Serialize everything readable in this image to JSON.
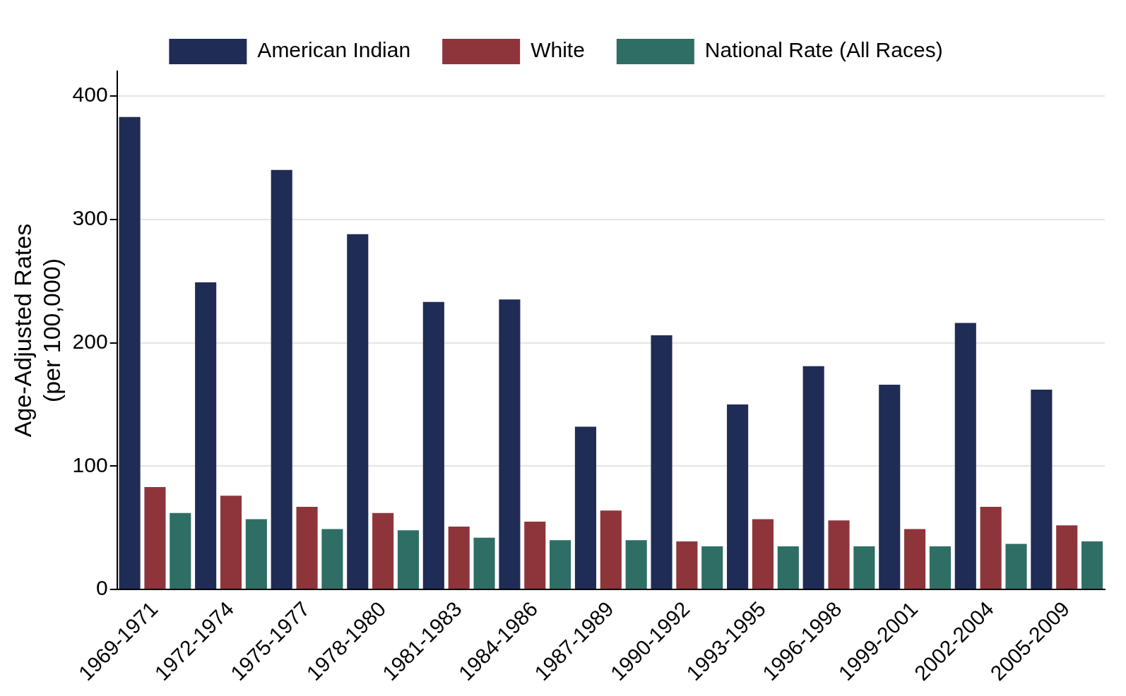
{
  "chart_data": {
    "type": "bar",
    "ylabel": "Age-Adjusted Rates\n(per 100,000)",
    "categories": [
      "1969-1971",
      "1972-1974",
      "1975-1977",
      "1978-1980",
      "1981-1983",
      "1984-1986",
      "1987-1989",
      "1990-1992",
      "1993-1995",
      "1996-1998",
      "1999-2001",
      "2002-2004",
      "2005-2009"
    ],
    "series": [
      {
        "name": "American Indian",
        "color": "#1f2c55",
        "values": [
          383,
          249,
          340,
          288,
          233,
          235,
          132,
          206,
          150,
          181,
          166,
          216,
          162
        ]
      },
      {
        "name": "White",
        "color": "#8e353b",
        "values": [
          83,
          76,
          67,
          62,
          51,
          55,
          64,
          39,
          57,
          56,
          49,
          67,
          52
        ]
      },
      {
        "name": "National Rate (All Races)",
        "color": "#2e6e65",
        "values": [
          62,
          57,
          49,
          48,
          42,
          40,
          40,
          35,
          35,
          35,
          35,
          37,
          39
        ]
      }
    ],
    "ylim": [
      0,
      420
    ],
    "yticks": [
      0,
      100,
      200,
      300,
      400
    ],
    "grid": "y",
    "legend": "top"
  }
}
